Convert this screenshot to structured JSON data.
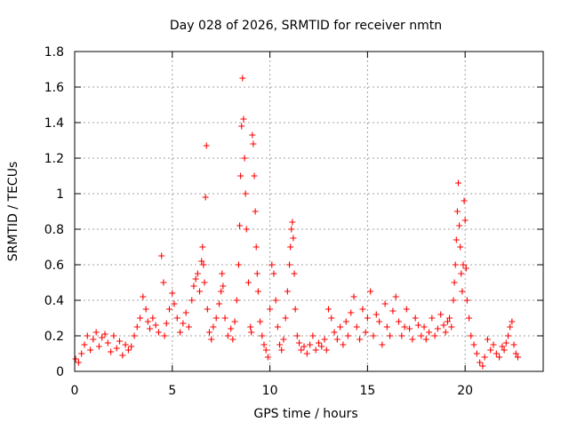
{
  "chart_data": {
    "type": "scatter",
    "title": "Day 028 of 2026, SRMTID for receiver nmtn",
    "xlabel": "GPS time / hours",
    "ylabel": "SRMTID / TECUs",
    "xlim": [
      0,
      24
    ],
    "ylim": [
      0,
      1.8
    ],
    "x_ticks": [
      0,
      5,
      10,
      15,
      20
    ],
    "x_tick_labels": [
      "0",
      "5",
      "10",
      "15",
      "20"
    ],
    "y_ticks": [
      0,
      0.2,
      0.4,
      0.6,
      0.8,
      1,
      1.2,
      1.4,
      1.6,
      1.8
    ],
    "y_tick_labels": [
      "0",
      "0.2",
      "0.4",
      "0.6",
      "0.8",
      "1",
      "1.2",
      "1.4",
      "1.6",
      "1.8"
    ],
    "grid": true,
    "marker": "+",
    "color": "#ff0000",
    "series": [
      {
        "name": "SRMTID",
        "x": [
          0.05,
          0.2,
          0.35,
          0.5,
          0.65,
          0.8,
          0.95,
          1.1,
          1.25,
          1.4,
          1.55,
          1.7,
          1.85,
          2.0,
          2.15,
          2.3,
          2.45,
          2.6,
          2.75,
          2.9,
          3.05,
          3.2,
          3.35,
          3.5,
          3.65,
          3.75,
          3.85,
          4.0,
          4.15,
          4.3,
          4.45,
          4.55,
          4.6,
          4.7,
          4.85,
          5.0,
          5.1,
          5.25,
          5.4,
          5.55,
          5.7,
          5.85,
          6.0,
          6.1,
          6.2,
          6.3,
          6.4,
          6.5,
          6.55,
          6.6,
          6.65,
          6.7,
          6.75,
          6.8,
          6.9,
          7.0,
          7.1,
          7.25,
          7.4,
          7.5,
          7.55,
          7.6,
          7.7,
          7.85,
          8.0,
          8.1,
          8.2,
          8.3,
          8.4,
          8.45,
          8.5,
          8.55,
          8.6,
          8.65,
          8.7,
          8.75,
          8.8,
          8.9,
          9.0,
          9.05,
          9.1,
          9.15,
          9.2,
          9.25,
          9.3,
          9.35,
          9.4,
          9.5,
          9.6,
          9.7,
          9.8,
          9.9,
          10.0,
          10.1,
          10.2,
          10.3,
          10.4,
          10.5,
          10.6,
          10.7,
          10.8,
          10.9,
          11.0,
          11.05,
          11.1,
          11.15,
          11.2,
          11.25,
          11.3,
          11.4,
          11.5,
          11.6,
          11.75,
          11.9,
          12.05,
          12.2,
          12.35,
          12.5,
          12.65,
          12.8,
          12.9,
          13.0,
          13.15,
          13.3,
          13.45,
          13.6,
          13.75,
          13.9,
          14.0,
          14.15,
          14.3,
          14.45,
          14.6,
          14.75,
          14.9,
          15.0,
          15.15,
          15.3,
          15.45,
          15.6,
          15.75,
          15.9,
          16.0,
          16.15,
          16.3,
          16.45,
          16.6,
          16.75,
          16.9,
          17.0,
          17.15,
          17.3,
          17.45,
          17.6,
          17.75,
          17.9,
          18.0,
          18.15,
          18.3,
          18.45,
          18.6,
          18.75,
          18.9,
          19.0,
          19.1,
          19.2,
          19.3,
          19.4,
          19.45,
          19.5,
          19.55,
          19.6,
          19.65,
          19.7,
          19.75,
          19.8,
          19.85,
          19.9,
          19.95,
          20.0,
          20.05,
          20.1,
          20.2,
          20.3,
          20.45,
          20.6,
          20.75,
          20.9,
          21.0,
          21.15,
          21.3,
          21.45,
          21.6,
          21.75,
          21.9,
          22.0,
          22.1,
          22.2,
          22.3,
          22.4,
          22.5,
          22.6,
          22.7
        ],
        "y": [
          0.07,
          0.05,
          0.1,
          0.15,
          0.2,
          0.12,
          0.18,
          0.22,
          0.14,
          0.19,
          0.21,
          0.16,
          0.11,
          0.2,
          0.13,
          0.17,
          0.09,
          0.15,
          0.12,
          0.14,
          0.2,
          0.25,
          0.3,
          0.42,
          0.35,
          0.28,
          0.24,
          0.3,
          0.26,
          0.22,
          0.65,
          0.5,
          0.2,
          0.27,
          0.35,
          0.44,
          0.38,
          0.3,
          0.22,
          0.27,
          0.33,
          0.25,
          0.4,
          0.48,
          0.52,
          0.55,
          0.45,
          0.62,
          0.7,
          0.6,
          0.5,
          0.98,
          1.27,
          0.35,
          0.22,
          0.18,
          0.25,
          0.3,
          0.38,
          0.45,
          0.55,
          0.48,
          0.3,
          0.2,
          0.24,
          0.18,
          0.28,
          0.4,
          0.6,
          0.82,
          1.1,
          1.38,
          1.65,
          1.42,
          1.2,
          1.0,
          0.8,
          0.5,
          0.25,
          0.22,
          1.33,
          1.28,
          1.1,
          0.9,
          0.7,
          0.55,
          0.45,
          0.28,
          0.2,
          0.15,
          0.12,
          0.08,
          0.35,
          0.6,
          0.55,
          0.4,
          0.25,
          0.15,
          0.12,
          0.18,
          0.3,
          0.45,
          0.6,
          0.7,
          0.8,
          0.84,
          0.75,
          0.55,
          0.35,
          0.2,
          0.16,
          0.12,
          0.14,
          0.1,
          0.15,
          0.2,
          0.12,
          0.16,
          0.14,
          0.18,
          0.12,
          0.35,
          0.3,
          0.22,
          0.18,
          0.25,
          0.15,
          0.28,
          0.2,
          0.33,
          0.42,
          0.25,
          0.18,
          0.35,
          0.22,
          0.3,
          0.45,
          0.2,
          0.32,
          0.28,
          0.15,
          0.38,
          0.25,
          0.2,
          0.34,
          0.42,
          0.28,
          0.2,
          0.25,
          0.35,
          0.24,
          0.18,
          0.3,
          0.26,
          0.2,
          0.25,
          0.18,
          0.22,
          0.3,
          0.2,
          0.24,
          0.32,
          0.26,
          0.22,
          0.28,
          0.3,
          0.25,
          0.4,
          0.5,
          0.6,
          0.74,
          0.9,
          1.06,
          0.82,
          0.7,
          0.55,
          0.45,
          0.6,
          0.96,
          0.85,
          0.58,
          0.4,
          0.3,
          0.2,
          0.15,
          0.1,
          0.05,
          0.03,
          0.08,
          0.18,
          0.12,
          0.15,
          0.1,
          0.08,
          0.14,
          0.12,
          0.16,
          0.2,
          0.25,
          0.28,
          0.15,
          0.1,
          0.08
        ]
      }
    ]
  }
}
